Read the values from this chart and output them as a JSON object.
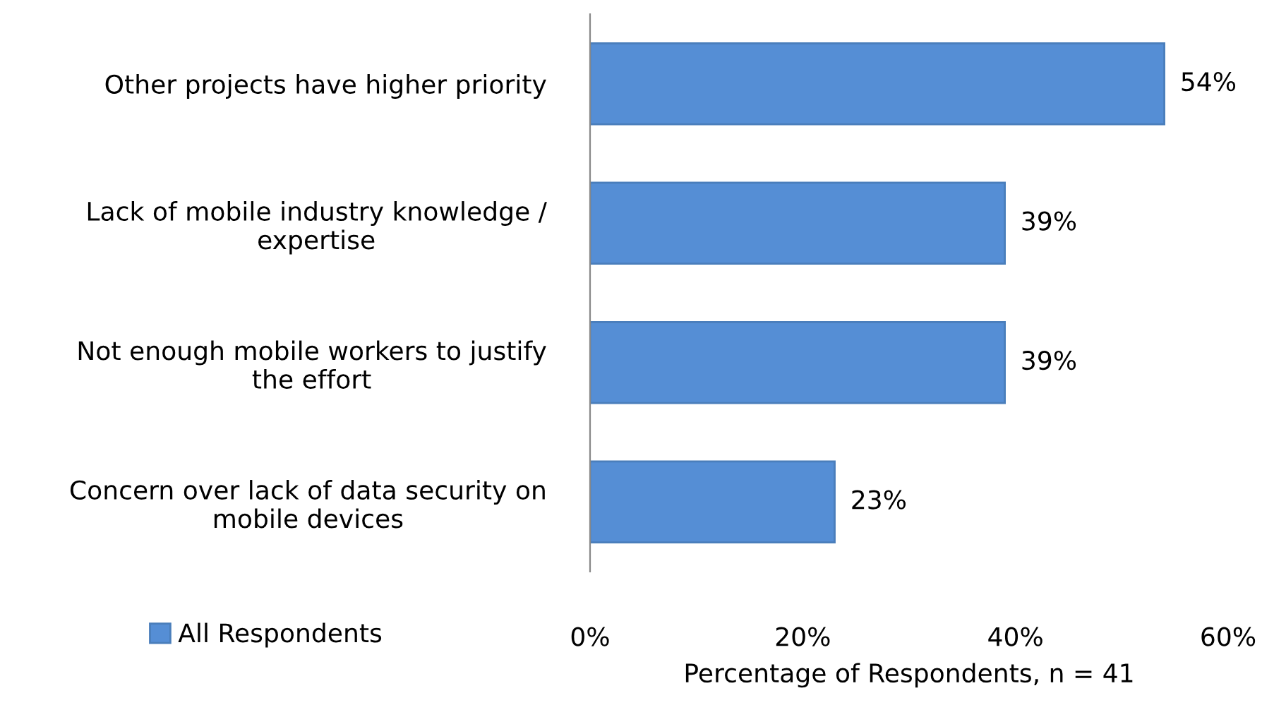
{
  "chart_data": {
    "type": "bar",
    "orientation": "horizontal",
    "categories": [
      "Other projects have higher priority",
      "Lack of mobile industry knowledge /\nexpertise",
      "Not enough mobile workers to justify\nthe effort",
      "Concern over lack of data security on\nmobile devices"
    ],
    "series": [
      {
        "name": "All Respondents",
        "color": "#558ed5",
        "values": [
          54,
          39,
          39,
          23
        ],
        "value_labels": [
          "54%",
          "39%",
          "39%",
          "23%"
        ]
      }
    ],
    "xlim": [
      0,
      60
    ],
    "xticks": [
      {
        "value": 0,
        "label": "0%"
      },
      {
        "value": 20,
        "label": "20%"
      },
      {
        "value": 40,
        "label": "40%"
      },
      {
        "value": 60,
        "label": "60%"
      }
    ],
    "xlabel": "Percentage of Respondents, n = 41",
    "legend": "bottom left",
    "grid": false
  }
}
